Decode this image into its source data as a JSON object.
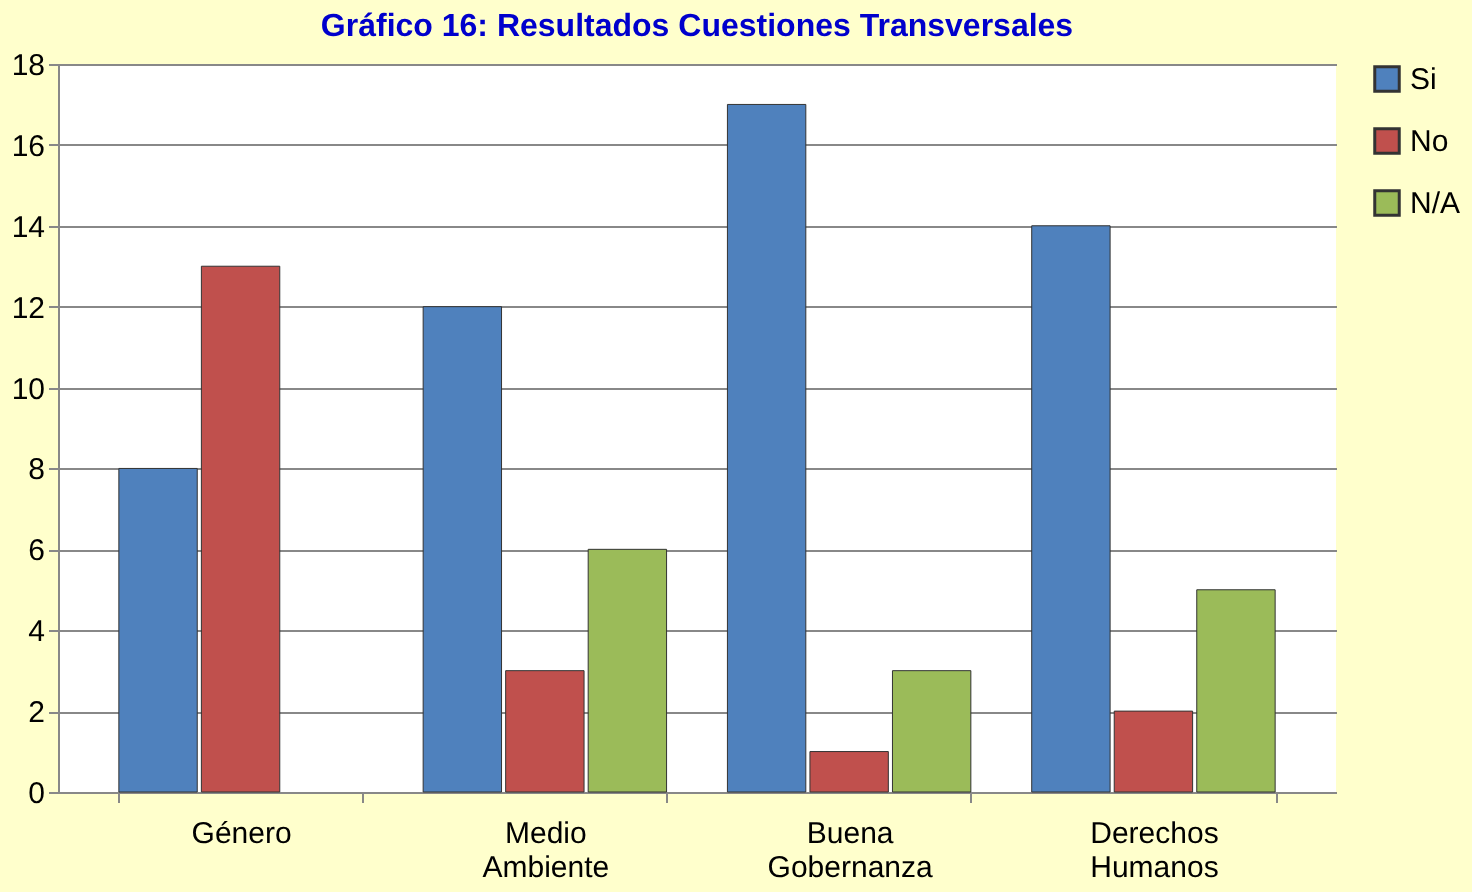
{
  "chart_data": {
    "type": "bar",
    "title": "Gráfico 16: Resultados Cuestiones Transversales",
    "categories": [
      "Género",
      "Medio Ambiente",
      "Buena Gobernanza",
      "Derechos Humanos"
    ],
    "series": [
      {
        "name": "Si",
        "color": "#4f81bd",
        "values": [
          8,
          12,
          17,
          14
        ]
      },
      {
        "name": "No",
        "color": "#c0504d",
        "values": [
          13,
          3,
          1,
          2
        ]
      },
      {
        "name": "N/A",
        "color": "#9bbb59",
        "values": [
          null,
          6,
          3,
          5
        ]
      }
    ],
    "ylim": [
      0,
      18
    ],
    "yticks": [
      0,
      2,
      4,
      6,
      8,
      10,
      12,
      14,
      16,
      18
    ],
    "grid": "y",
    "legend": "right"
  }
}
